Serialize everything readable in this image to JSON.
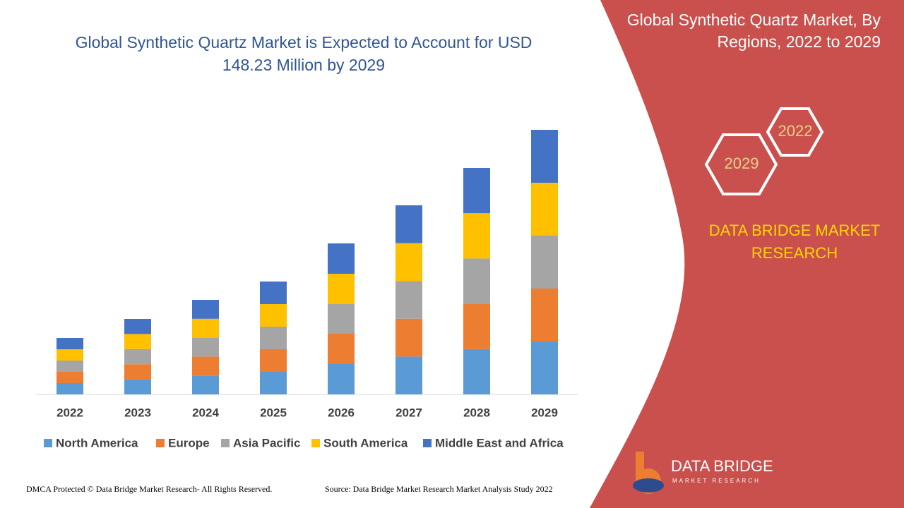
{
  "chart_data": {
    "type": "stacked-bar",
    "title": "Global Synthetic Quartz Market is Expected to Account for USD 148.23 Million by 2029",
    "categories": [
      "2022",
      "2023",
      "2024",
      "2025",
      "2026",
      "2027",
      "2028",
      "2029"
    ],
    "series": [
      {
        "name": "North America",
        "color": "#5b9bd5",
        "values": [
          16,
          21.4,
          26.8,
          32,
          43,
          53.6,
          64.2,
          75
        ]
      },
      {
        "name": "Europe",
        "color": "#ed7d31",
        "values": [
          16,
          21.4,
          26.8,
          32,
          43,
          53.6,
          64.2,
          75
        ]
      },
      {
        "name": "Asia Pacific",
        "color": "#a5a5a5",
        "values": [
          16,
          21.4,
          26.8,
          32,
          42,
          53.6,
          64.2,
          75
        ]
      },
      {
        "name": "South America",
        "color": "#ffc000",
        "values": [
          16,
          21.4,
          26.8,
          32,
          43,
          53.6,
          64.2,
          75
        ]
      },
      {
        "name": "Middle East and Africa",
        "color": "#4472c4",
        "values": [
          16,
          21.4,
          26.8,
          32,
          43,
          53.6,
          64.2,
          75
        ]
      }
    ]
  },
  "panel": {
    "title": "Global Synthetic Quartz Market, By Regions, 2022 to 2029",
    "hex_start": "2022",
    "hex_end": "2029",
    "brand": "DATA BRIDGE MARKET RESEARCH"
  },
  "logo": {
    "name": "DATA BRIDGE",
    "tagline": "MARKET RESEARCH"
  },
  "footer": {
    "copyright": "DMCA Protected © Data Bridge Market Research- All Rights Reserved.",
    "source": "Source: Data Bridge Market Research Market Analysis Study 2022"
  }
}
